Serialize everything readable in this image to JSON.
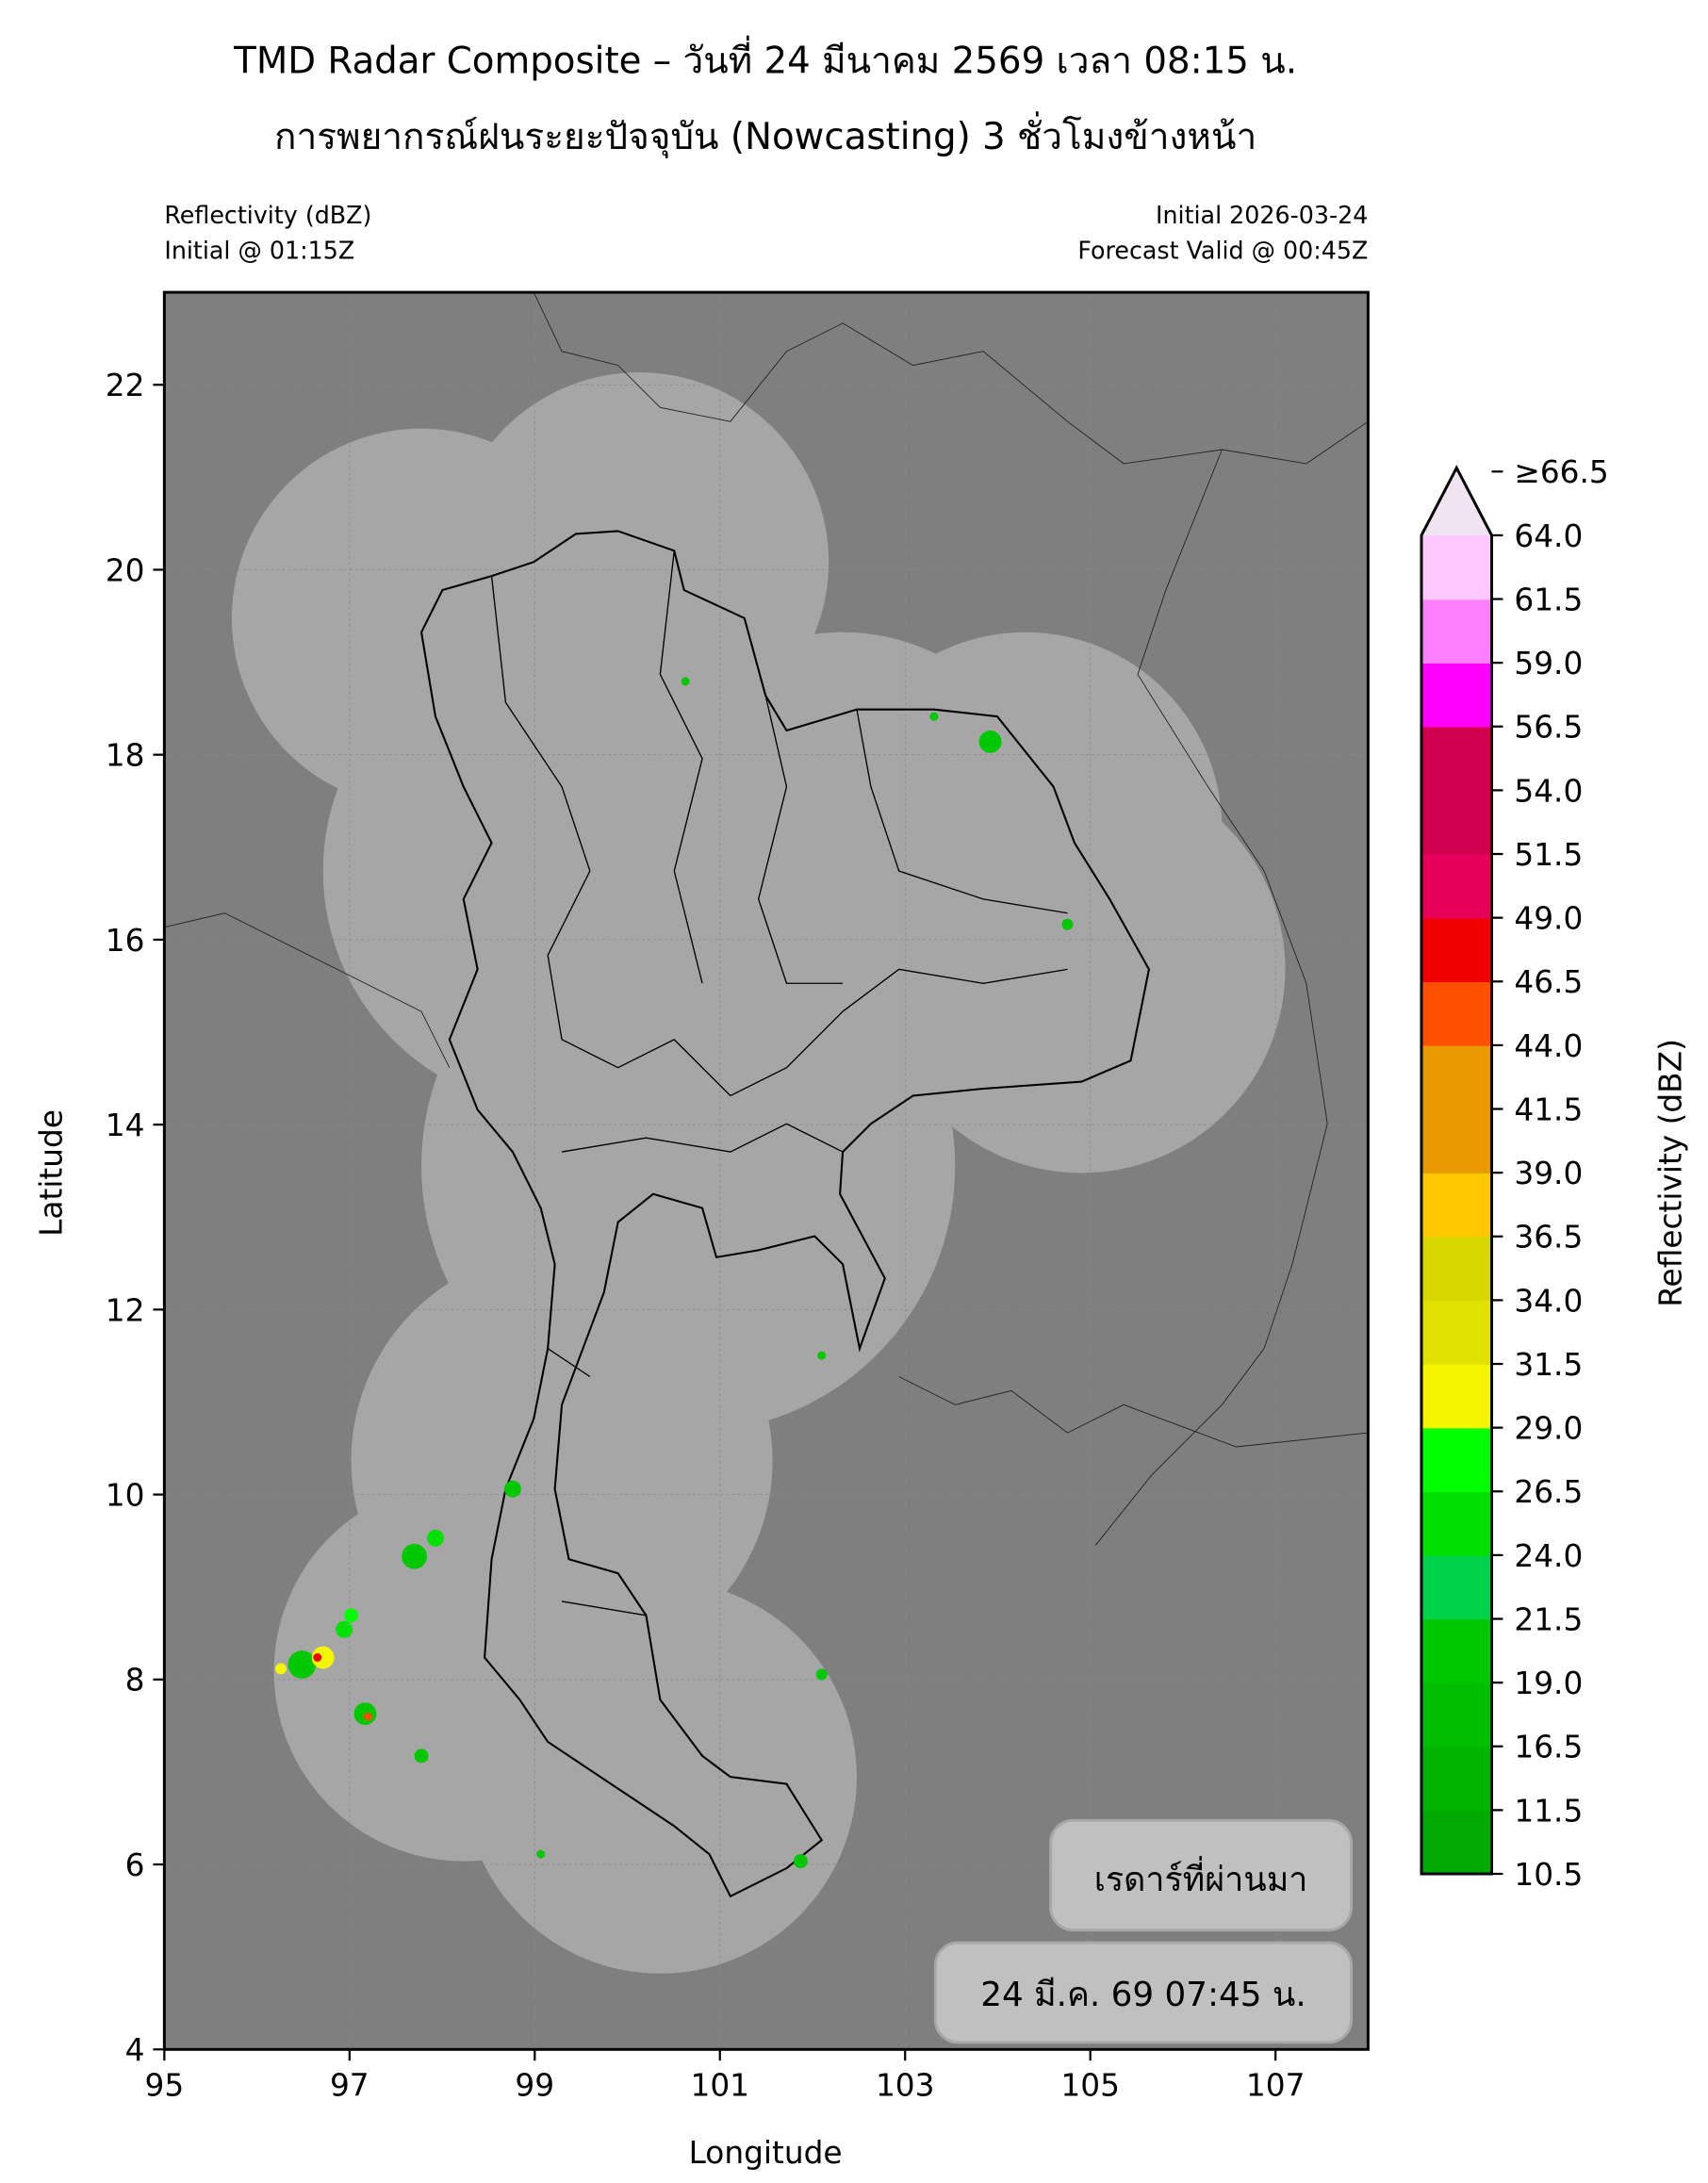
{
  "title": {
    "line1": "TMD Radar Composite – วันที่ 24 มีนาคม 2569 เวลา 08:15 น.",
    "line2": "การพยากรณ์ฝนระยะปัจจุบัน (Nowcasting) 3 ชั่วโมงข้างหน้า"
  },
  "subtitle_left": {
    "line1": "Reflectivity (dBZ)",
    "line2": "Initial @ 01:15Z"
  },
  "subtitle_right": {
    "line1": "Initial 2026-03-24",
    "line2": "Forecast Valid @ 00:45Z"
  },
  "map": {
    "xlabel": "Longitude",
    "ylabel": "Latitude",
    "xlim": [
      95,
      108
    ],
    "ylim": [
      4,
      23
    ],
    "xticks": [
      "95",
      "97",
      "99",
      "101",
      "103",
      "105",
      "107"
    ],
    "yticks": [
      "4",
      "6",
      "8",
      "10",
      "12",
      "14",
      "16",
      "18",
      "20",
      "22"
    ],
    "colors": {
      "background": "#7f7f7f",
      "coverage": "#a6a6a6",
      "borders": "#000000"
    }
  },
  "legend": {
    "past_radar": "เรดาร์ที่ผ่านมา",
    "timestamp": "24 มี.ค. 69 07:45 น."
  },
  "colorbar": {
    "label": "Reflectivity (dBZ)",
    "ticks": [
      "10.5",
      "11.5",
      "16.5",
      "19.0",
      "21.5",
      "24.0",
      "26.5",
      "29.0",
      "31.5",
      "34.0",
      "36.5",
      "39.0",
      "41.5",
      "44.0",
      "46.5",
      "49.0",
      "51.5",
      "54.0",
      "56.5",
      "59.0",
      "61.5",
      "64.0",
      "≥66.5"
    ],
    "colors": [
      "#00aa00",
      "#00b400",
      "#00be00",
      "#00c800",
      "#00d24a",
      "#00e000",
      "#00ff00",
      "#f5f500",
      "#e2e200",
      "#d8d800",
      "#ffc800",
      "#e89a00",
      "#e89a00",
      "#ff5000",
      "#f00000",
      "#e6005a",
      "#d0004e",
      "#d0004e",
      "#ff00ff",
      "#ff80ff",
      "#ffc8ff",
      "#f0e4f0"
    ],
    "extend_color": "#f0e4f0"
  }
}
